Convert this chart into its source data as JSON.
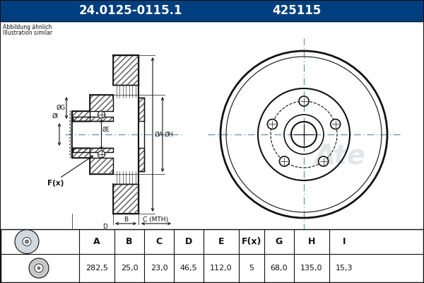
{
  "title_part_number": "24.0125-0115.1",
  "title_ref": "425115",
  "header_bg": "#003f7f",
  "header_text_color": "#ffffff",
  "body_bg": "#b8d0e0",
  "draw_bg": "#ffffff",
  "note_line1": "Abbildung ähnlich",
  "note_line2": "Illustration similar",
  "table_headers": [
    "A",
    "B",
    "C",
    "D",
    "E",
    "F(x)",
    "G",
    "H",
    "I"
  ],
  "table_values": [
    "282,5",
    "25,0",
    "23,0",
    "46,5",
    "112,0",
    "5",
    "68,0",
    "135,0",
    "15,3"
  ],
  "centerline_color": "#5599bb",
  "line_color": "#111111",
  "ate_watermark": "Ate"
}
